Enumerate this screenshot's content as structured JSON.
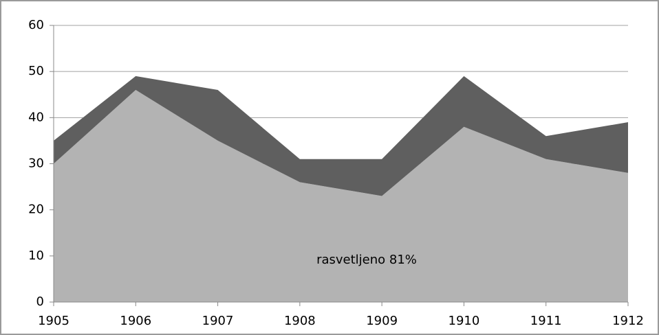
{
  "chart_data": {
    "type": "stacked_area",
    "x": [
      1905,
      1906,
      1907,
      1908,
      1909,
      1910,
      1911,
      1912
    ],
    "series": [
      {
        "color": "#b3b3b3",
        "values": [
          30,
          46,
          35,
          26,
          23,
          38,
          31,
          28
        ]
      },
      {
        "color": "#5f5f5f",
        "values": [
          5,
          3,
          11,
          5,
          8,
          11,
          5,
          11
        ]
      }
    ],
    "annotation": "rasvetljeno 81%",
    "xlim": [
      1905,
      1912
    ],
    "xticks": [
      1905,
      1906,
      1907,
      1908,
      1909,
      1910,
      1911,
      1912
    ],
    "ylim": [
      0,
      60
    ],
    "yticks": [
      0,
      10,
      20,
      30,
      40,
      50,
      60
    ],
    "grid": true
  }
}
